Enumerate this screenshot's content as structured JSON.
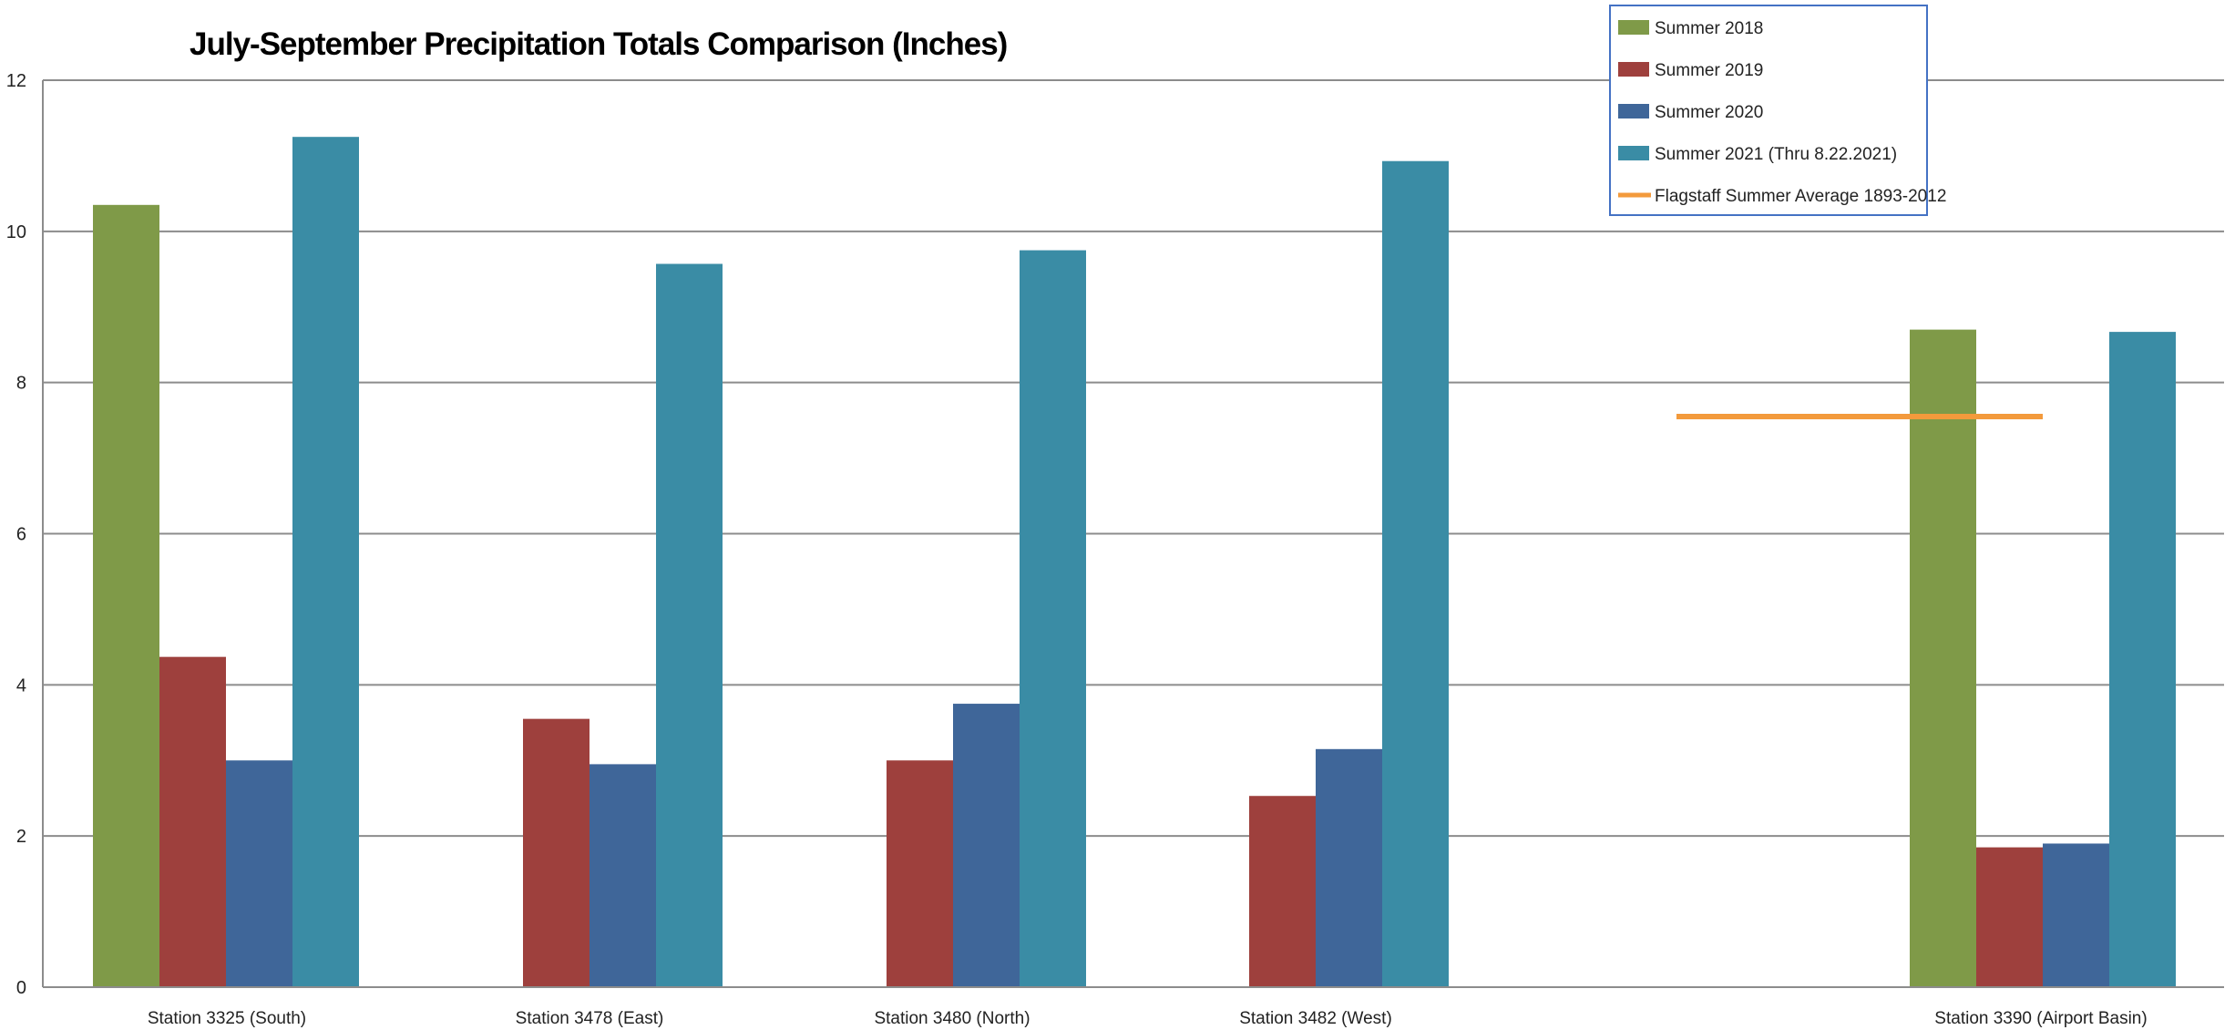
{
  "chart_data": {
    "type": "bar",
    "title": "July-September Precipitation Totals Comparison (Inches)",
    "xlabel": "",
    "ylabel": "",
    "ylim": [
      0,
      12
    ],
    "yticks": [
      0,
      2,
      4,
      6,
      8,
      10,
      12
    ],
    "grid": true,
    "legend_position": "top-right",
    "categories": [
      "Station 3325 (South)",
      "Station 3478 (East)",
      "Station 3480 (North)",
      "Station 3482 (West)",
      "",
      "Station 3390 (Airport Basin)"
    ],
    "series": [
      {
        "name": "Summer 2018",
        "color": "#7F9A48",
        "values": [
          10.35,
          null,
          null,
          null,
          null,
          8.7
        ]
      },
      {
        "name": "Summer 2019",
        "color": "#9E403D",
        "values": [
          4.37,
          3.55,
          3.0,
          2.53,
          null,
          1.85
        ]
      },
      {
        "name": "Summer 2020",
        "color": "#3F6699",
        "values": [
          3.0,
          2.95,
          3.75,
          3.15,
          null,
          1.9
        ]
      },
      {
        "name": "Summer 2021 (Thru 8.22.2021)",
        "color": "#3A8CA5",
        "values": [
          11.25,
          9.57,
          9.75,
          10.93,
          null,
          8.67
        ]
      }
    ],
    "reference_line": {
      "name": "Flagstaff Summer Average 1893-2012",
      "color": "#F39A3C",
      "value": 7.55,
      "categories": [
        "",
        "Station 3390 (Airport Basin)"
      ]
    }
  }
}
